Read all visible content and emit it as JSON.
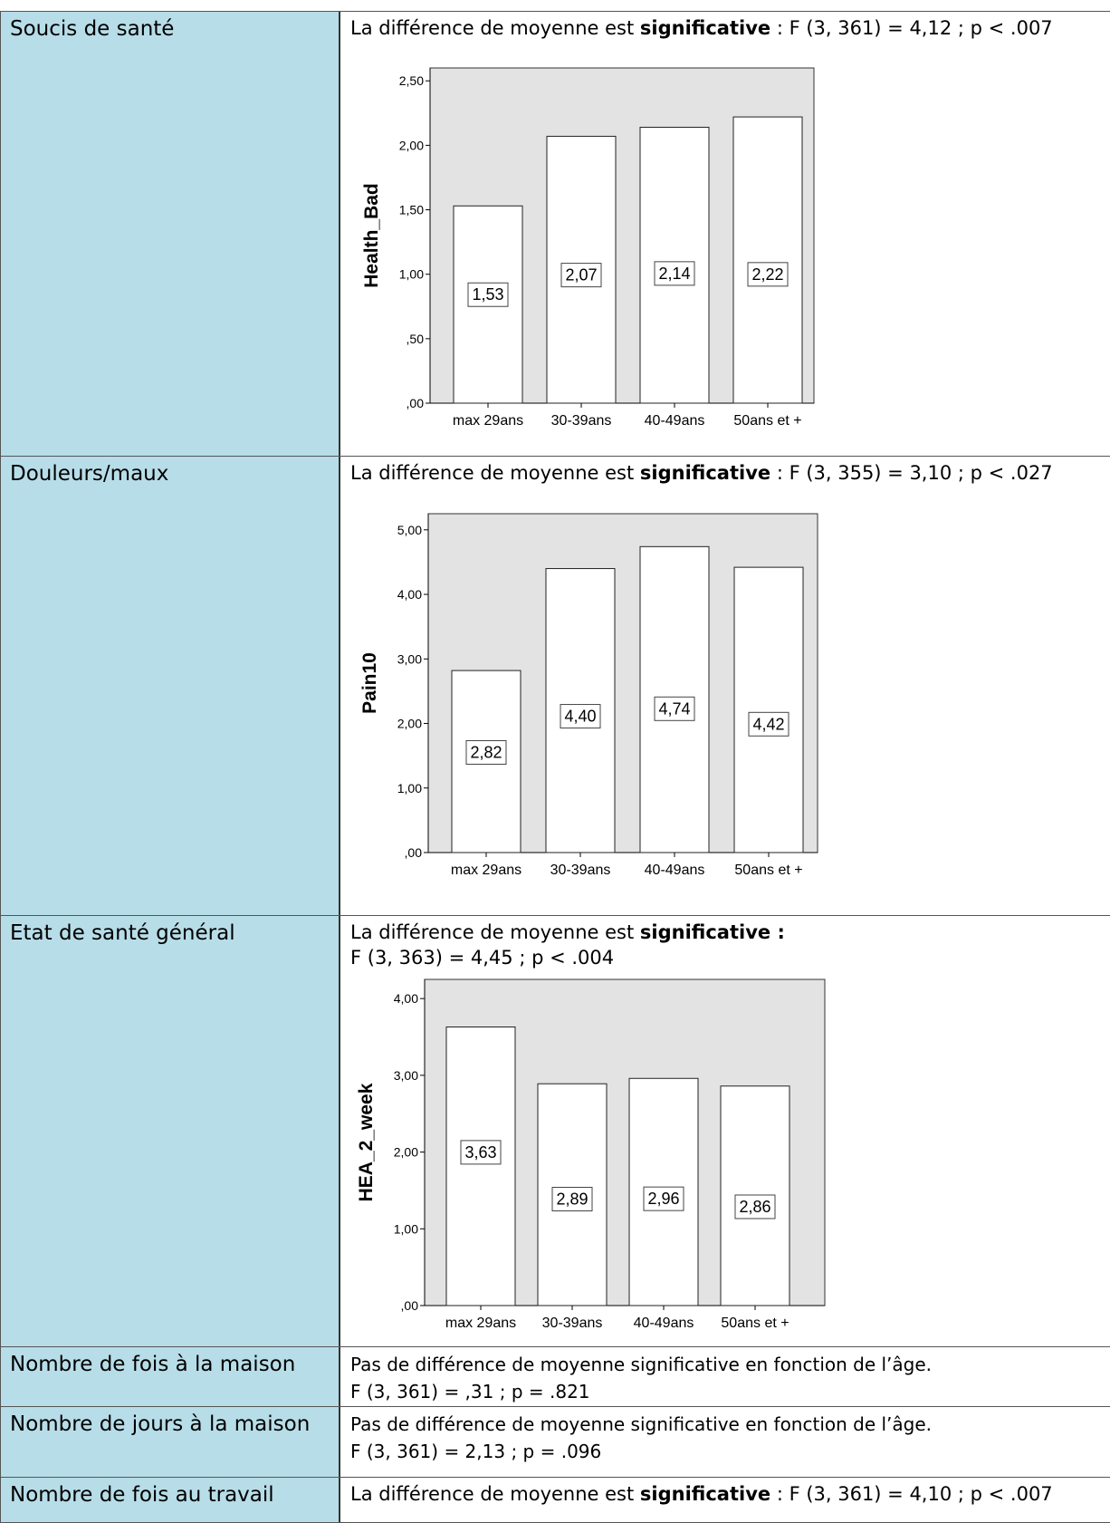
{
  "rows": [
    {
      "label": "Soucis de santé",
      "stat_prefix": "La différence de moyenne est ",
      "stat_bold": "significative",
      "stat_suffix": " : F (3, 361) = 4,12 ; p < .007"
    },
    {
      "label": "Douleurs/maux",
      "stat_prefix": "La différence de moyenne est ",
      "stat_bold": "significative",
      "stat_suffix": " : F (3, 355) = 3,10 ; p < .027"
    },
    {
      "label": "Etat de santé général",
      "stat_prefix": "La différence de moyenne est ",
      "stat_bold": "significative :",
      "stat_line2": "F (3, 363) = 4,45 ; p < .004"
    },
    {
      "label": "Nombre de fois à la maison",
      "stat_line1": "Pas de différence de moyenne significative en fonction de l’âge.",
      "stat_line2": "F (3, 361) = ,31 ; p = .821"
    },
    {
      "label": "Nombre de jours à la maison",
      "stat_line1": "Pas de différence de moyenne significative en fonction de l’âge.",
      "stat_line2": "F (3, 361) = 2,13 ; p = .096"
    },
    {
      "label": "Nombre de fois au travail",
      "stat_prefix": "La différence de moyenne est ",
      "stat_bold": "significative",
      "stat_suffix": " : F (3, 361) = 4,10 ; p < .007"
    }
  ],
  "colors": {
    "label_bg": "#b7dde8",
    "plot_bg": "#e3e3e3",
    "bar_fill": "#ffffff"
  },
  "chart_data": [
    {
      "type": "bar",
      "categories": [
        "max 29ans",
        "30-39ans",
        "40-49ans",
        "50ans et +"
      ],
      "values": [
        1.53,
        2.07,
        2.14,
        2.22
      ],
      "data_labels": [
        "1,53",
        "2,07",
        "2,14",
        "2,22"
      ],
      "ylabel": "Health_Bad",
      "ylim": [
        0,
        2.6
      ],
      "yticks": [
        0,
        0.5,
        1,
        1.5,
        2,
        2.5
      ],
      "ytick_labels": [
        ",00",
        ",50",
        "1,00",
        "1,50",
        "2,00",
        "2,50"
      ],
      "grid": false
    },
    {
      "type": "bar",
      "categories": [
        "max 29ans",
        "30-39ans",
        "40-49ans",
        "50ans et +"
      ],
      "values": [
        2.82,
        4.4,
        4.74,
        4.42
      ],
      "data_labels": [
        "2,82",
        "4,40",
        "4,74",
        "4,42"
      ],
      "ylabel": "Pain10",
      "ylim": [
        0,
        5.25
      ],
      "yticks": [
        0,
        1,
        2,
        3,
        4,
        5
      ],
      "ytick_labels": [
        ",00",
        "1,00",
        "2,00",
        "3,00",
        "4,00",
        "5,00"
      ],
      "grid": false
    },
    {
      "type": "bar",
      "categories": [
        "max 29ans",
        "30-39ans",
        "40-49ans",
        "50ans et +"
      ],
      "values": [
        3.63,
        2.89,
        2.96,
        2.86
      ],
      "data_labels": [
        "3,63",
        "2,89",
        "2,96",
        "2,86"
      ],
      "ylabel": "HEA_2_week",
      "ylim": [
        0,
        4.25
      ],
      "yticks": [
        0,
        1,
        2,
        3,
        4
      ],
      "ytick_labels": [
        ",00",
        "1,00",
        "2,00",
        "3,00",
        "4,00"
      ],
      "grid": false
    }
  ]
}
